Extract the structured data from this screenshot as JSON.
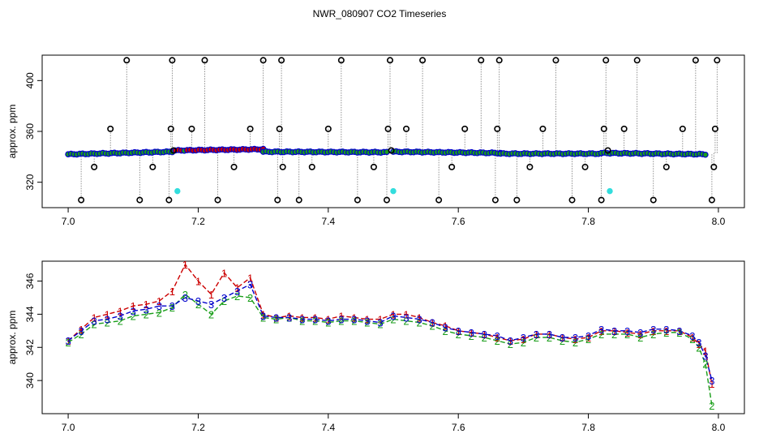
{
  "page": {
    "title": "NWR_080907  CO2 Timeseries"
  },
  "chart_data": [
    {
      "type": "scatter",
      "id": "top",
      "ylabel": "approx. ppm",
      "xlabel": "",
      "xlim": [
        6.96,
        8.04
      ],
      "ylim": [
        300,
        420
      ],
      "xticks": [
        "7.0",
        "7.2",
        "7.4",
        "7.6",
        "7.8",
        "8.0"
      ],
      "yticks": [
        "320",
        "360",
        "400"
      ],
      "colors": {
        "main": "#0000cc",
        "fill": "#1a9e1a",
        "hi": "#cc0000",
        "outlier": "#000000",
        "cyan": "#33dddd"
      },
      "segments": [
        {
          "x": [
            7.0,
            7.16
          ],
          "y": [
            342,
            344
          ]
        },
        {
          "x": [
            7.165,
            7.3
          ],
          "y": [
            345,
            346
          ]
        },
        {
          "x": [
            7.3,
            7.49
          ],
          "y": [
            344,
            343.6
          ]
        },
        {
          "x": [
            7.5,
            7.665
          ],
          "y": [
            344,
            343
          ]
        },
        {
          "x": [
            7.665,
            7.82
          ],
          "y": [
            342.5,
            342.5
          ]
        },
        {
          "x": [
            7.82,
            7.98
          ],
          "y": [
            343,
            342
          ]
        }
      ],
      "outliers": {
        "x": [
          7.02,
          7.04,
          7.065,
          7.09,
          7.11,
          7.13,
          7.155,
          7.158,
          7.16,
          7.162,
          7.19,
          7.21,
          7.23,
          7.255,
          7.28,
          7.3,
          7.322,
          7.325,
          7.328,
          7.33,
          7.355,
          7.375,
          7.4,
          7.42,
          7.445,
          7.47,
          7.49,
          7.492,
          7.495,
          7.497,
          7.52,
          7.545,
          7.57,
          7.59,
          7.61,
          7.635,
          7.657,
          7.66,
          7.663,
          7.69,
          7.71,
          7.73,
          7.75,
          7.775,
          7.795,
          7.82,
          7.824,
          7.827,
          7.83,
          7.855,
          7.875,
          7.9,
          7.92,
          7.945,
          7.965,
          7.99,
          7.993,
          7.995,
          7.998
        ],
        "y": [
          306,
          332,
          362,
          416,
          306,
          332,
          306,
          362,
          416,
          345,
          362,
          416,
          306,
          332,
          362,
          416,
          306,
          362,
          416,
          332,
          306,
          332,
          362,
          416,
          306,
          332,
          306,
          362,
          416,
          345,
          362,
          416,
          306,
          332,
          362,
          416,
          306,
          362,
          416,
          306,
          332,
          362,
          416,
          306,
          332,
          306,
          362,
          416,
          345,
          362,
          416,
          306,
          332,
          362,
          416,
          306,
          332,
          362,
          416
        ]
      },
      "cyan_points": {
        "x": [
          7.168,
          7.5,
          7.833
        ],
        "y": [
          313,
          313,
          313
        ]
      }
    },
    {
      "type": "line",
      "id": "bottom",
      "ylabel": "approx. ppm",
      "xlabel": "",
      "xlim": [
        6.96,
        8.04
      ],
      "ylim": [
        338,
        347.2
      ],
      "xticks": [
        "7.0",
        "7.2",
        "7.4",
        "7.6",
        "7.8",
        "8.0"
      ],
      "yticks": [
        "340",
        "342",
        "344",
        "346"
      ],
      "series": [
        {
          "name": "1",
          "color": "#cc0000",
          "glyph": "1",
          "x": [
            7.0,
            7.02,
            7.04,
            7.06,
            7.08,
            7.1,
            7.12,
            7.14,
            7.16,
            7.18,
            7.2,
            7.22,
            7.24,
            7.26,
            7.28,
            7.3,
            7.32,
            7.34,
            7.36,
            7.38,
            7.4,
            7.42,
            7.44,
            7.46,
            7.48,
            7.5,
            7.52,
            7.54,
            7.56,
            7.58,
            7.6,
            7.62,
            7.64,
            7.66,
            7.68,
            7.7,
            7.72,
            7.74,
            7.76,
            7.78,
            7.8,
            7.82,
            7.84,
            7.86,
            7.88,
            7.9,
            7.92,
            7.94,
            7.96,
            7.97,
            7.98,
            7.99
          ],
          "values": [
            342.4,
            343.1,
            343.8,
            344.0,
            344.2,
            344.5,
            344.6,
            344.8,
            345.4,
            347.0,
            346.0,
            345.2,
            346.5,
            345.6,
            346.2,
            344.0,
            343.8,
            343.9,
            343.8,
            343.8,
            343.7,
            343.9,
            343.8,
            343.7,
            343.7,
            344.0,
            344.0,
            343.8,
            343.5,
            343.3,
            343.0,
            342.9,
            342.8,
            342.6,
            342.4,
            342.5,
            342.8,
            342.8,
            342.6,
            342.5,
            342.6,
            343.0,
            343.0,
            342.9,
            342.8,
            343.0,
            343.0,
            343.0,
            342.6,
            342.2,
            341.8,
            339.8
          ]
        },
        {
          "name": "2",
          "color": "#1a9e1a",
          "glyph": "2",
          "x": [
            7.0,
            7.02,
            7.04,
            7.06,
            7.08,
            7.1,
            7.12,
            7.14,
            7.16,
            7.18,
            7.2,
            7.22,
            7.24,
            7.26,
            7.28,
            7.3,
            7.32,
            7.34,
            7.36,
            7.38,
            7.4,
            7.42,
            7.44,
            7.46,
            7.48,
            7.5,
            7.52,
            7.54,
            7.56,
            7.58,
            7.6,
            7.62,
            7.64,
            7.66,
            7.68,
            7.7,
            7.72,
            7.74,
            7.76,
            7.78,
            7.8,
            7.82,
            7.84,
            7.86,
            7.88,
            7.9,
            7.92,
            7.94,
            7.96,
            7.97,
            7.98,
            7.99
          ],
          "values": [
            342.3,
            342.8,
            343.4,
            343.5,
            343.6,
            343.9,
            344.0,
            344.1,
            344.4,
            345.2,
            344.6,
            344.0,
            344.8,
            345.1,
            345.0,
            343.8,
            343.7,
            343.8,
            343.6,
            343.6,
            343.5,
            343.6,
            343.6,
            343.5,
            343.4,
            343.7,
            343.6,
            343.5,
            343.3,
            343.0,
            342.8,
            342.7,
            342.6,
            342.4,
            342.2,
            342.3,
            342.6,
            342.6,
            342.4,
            342.3,
            342.5,
            342.8,
            342.8,
            342.8,
            342.6,
            342.8,
            342.9,
            342.9,
            342.5,
            342.0,
            341.0,
            338.5
          ]
        },
        {
          "name": "3",
          "color": "#0000cc",
          "glyph": "3",
          "x": [
            7.0,
            7.02,
            7.04,
            7.06,
            7.08,
            7.1,
            7.12,
            7.14,
            7.16,
            7.18,
            7.2,
            7.22,
            7.24,
            7.26,
            7.28,
            7.3,
            7.32,
            7.34,
            7.36,
            7.38,
            7.4,
            7.42,
            7.44,
            7.46,
            7.48,
            7.5,
            7.52,
            7.54,
            7.56,
            7.58,
            7.6,
            7.62,
            7.64,
            7.66,
            7.68,
            7.7,
            7.72,
            7.74,
            7.76,
            7.78,
            7.8,
            7.82,
            7.84,
            7.86,
            7.88,
            7.9,
            7.92,
            7.94,
            7.96,
            7.97,
            7.98,
            7.99
          ],
          "values": [
            342.4,
            343.0,
            343.6,
            343.7,
            343.9,
            344.2,
            344.3,
            344.5,
            344.5,
            345.0,
            344.8,
            344.6,
            345.0,
            345.4,
            345.8,
            343.9,
            343.8,
            343.8,
            343.7,
            343.7,
            343.6,
            343.7,
            343.7,
            343.6,
            343.5,
            343.9,
            343.8,
            343.7,
            343.5,
            343.2,
            343.0,
            342.9,
            342.8,
            342.7,
            342.4,
            342.6,
            342.8,
            342.8,
            342.6,
            342.6,
            342.7,
            343.1,
            343.0,
            343.0,
            342.9,
            343.1,
            343.1,
            343.0,
            342.7,
            342.3,
            341.5,
            340.0
          ]
        }
      ]
    }
  ]
}
